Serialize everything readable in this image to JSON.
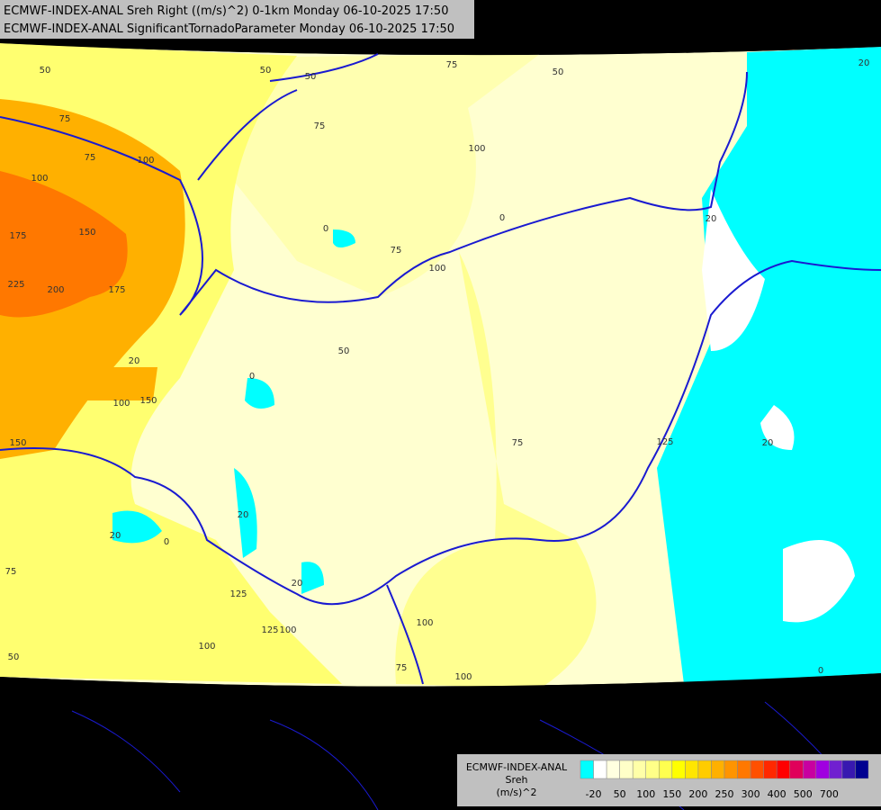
{
  "header": {
    "line1": "ECMWF-INDEX-ANAL Sreh Right ((m/s)^2) 0-1km Monday 06-10-2025 17:50",
    "line2": "ECMWF-INDEX-ANAL SignificantTornadoParameter Monday 06-10-2025 17:50"
  },
  "legend": {
    "title": [
      "ECMWF-INDEX-ANAL",
      "Sreh",
      "(m/s)^2"
    ],
    "colors": [
      "#00ffff",
      "#ffffff",
      "#ffffe0",
      "#ffffc8",
      "#ffffa8",
      "#ffff88",
      "#ffff50",
      "#ffff00",
      "#ffe600",
      "#ffcc00",
      "#ffb000",
      "#ff9400",
      "#ff7800",
      "#ff5000",
      "#ff2800",
      "#ff0000",
      "#e0005a",
      "#c800a0",
      "#a000e0",
      "#7020d0",
      "#3818b0",
      "#000090"
    ],
    "labels": [
      -20,
      50,
      100,
      150,
      200,
      250,
      300,
      400,
      500,
      700
    ]
  },
  "contour_labels": [
    50,
    50,
    50,
    75,
    75,
    100,
    100,
    125,
    150,
    175,
    175,
    200,
    225,
    0,
    0,
    0,
    50,
    75,
    100,
    75,
    100,
    150,
    100,
    20,
    20,
    20,
    125,
    100,
    50,
    75,
    100,
    100,
    75,
    75,
    0,
    20,
    20,
    20,
    0,
    50,
    20,
    75,
    125,
    100,
    150
  ]
}
